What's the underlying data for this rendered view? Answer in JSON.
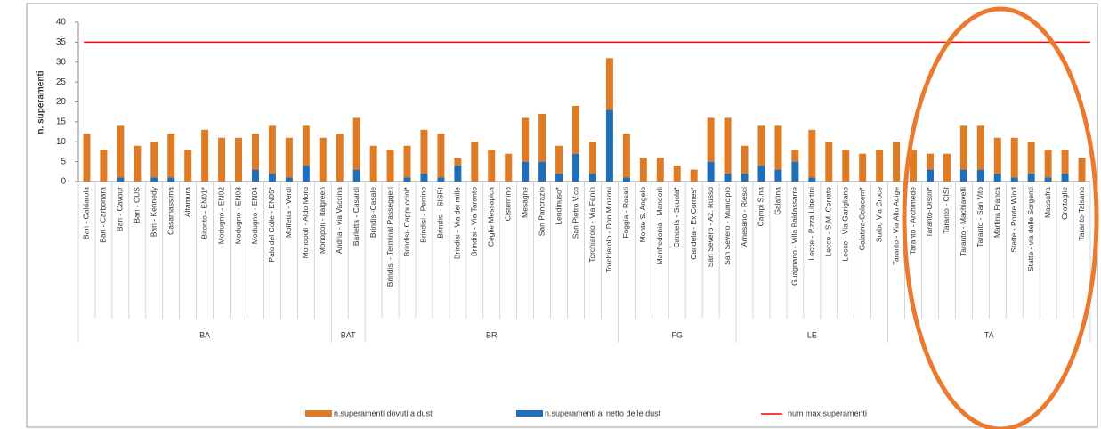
{
  "chart_data": {
    "type": "bar",
    "stacked": true,
    "y_label": "n. superamenti",
    "ylim": [
      0,
      40
    ],
    "yticks": [
      0,
      5,
      10,
      15,
      20,
      25,
      30,
      35,
      40
    ],
    "grid": false,
    "groups": [
      {
        "label": "BA",
        "categories": [
          "Bari - Caldarola",
          "Bari - Carbonara",
          "Bari - Cavour",
          "Bari - CUS",
          "Bari - Kennedy",
          "Casamassima",
          "Altamura",
          "Bitonto - EN01*",
          "Modugno - EN02",
          "Modugno - EN03",
          "Modugno - EN04",
          "Palo del Colle - EN05*",
          "Molfetta - Verdi",
          "Monopoli - Aldo Moro",
          "Monopoli - Italgreen"
        ]
      },
      {
        "label": "BAT",
        "categories": [
          "Andria - via Vaccina",
          "Barletta - Casardi"
        ]
      },
      {
        "label": "BR",
        "categories": [
          "Brindisi-Casale",
          "Brindisi - Terminal Passeggeri",
          "Brindisi- Cappuccini*",
          "Brindisi - Perrino",
          "Brindisi - SISRI",
          "Brindisi - Via dei mille",
          "Brindisi - Via Taranto",
          "Ceglie Messapica",
          "Cisternino",
          "Mesagne",
          "San Pancrazio",
          "Lendinuso*",
          "San Pietro V.co",
          "Torchiarolo - Via Fanin",
          "Torchiarolo - Don Minzoni"
        ]
      },
      {
        "label": "FG",
        "categories": [
          "Foggia - Rosati",
          "Monte S. Angelo",
          "Manfredonia - Mandorli",
          "Candela - Scuola*",
          "Candela - Ex Comes*",
          "San Severo - Az. Russo",
          "San Severo - Municipio"
        ]
      },
      {
        "label": "LE",
        "categories": [
          "Arnesano - Riesci",
          "Campi S.na",
          "Galatina",
          "Guagnano - Villa Baldassarre",
          "Lecce - P.zza Libertini",
          "Lecce - S.M. Cerrate",
          "Lecce - Via Garigliano",
          "Galatina-Colacem*",
          "Surbo Via Croce"
        ]
      },
      {
        "label": "TA",
        "categories": [
          "Taranto - Via Alto Adige",
          "Taranto - Archimede",
          "Taranto-Orsini*",
          "Taranto - CISI",
          "Taranto - Machiavelli",
          "Taranto - San Vito",
          "Martina Franca",
          "Statte - Ponte Wind",
          "Statte - via delle Sorgenti",
          "Massafra",
          "Grottaglie",
          "Taranto-Talsano"
        ]
      }
    ],
    "series": [
      {
        "name": "n.superamenti al netto delle dust",
        "color": "#1f6fb8",
        "values": [
          0,
          0,
          1,
          0,
          1,
          1,
          0,
          0,
          0,
          0,
          3,
          2,
          1,
          4,
          0,
          0,
          3,
          0,
          0,
          1,
          2,
          1,
          4,
          0,
          0,
          0,
          5,
          5,
          2,
          7,
          2,
          18,
          1,
          0,
          0,
          0,
          0,
          5,
          2,
          2,
          4,
          3,
          5,
          1,
          0,
          0,
          0,
          0,
          0,
          0,
          3,
          0,
          3,
          3,
          2,
          1,
          2,
          1,
          2,
          0
        ]
      },
      {
        "name": "n.superamenti dovuti a dust",
        "color": "#e07b25",
        "values": [
          12,
          8,
          13,
          9,
          9,
          11,
          8,
          13,
          11,
          11,
          9,
          12,
          10,
          10,
          11,
          12,
          13,
          9,
          8,
          8,
          11,
          11,
          2,
          10,
          8,
          7,
          11,
          12,
          7,
          12,
          8,
          13,
          11,
          6,
          6,
          4,
          3,
          11,
          14,
          7,
          10,
          11,
          3,
          12,
          10,
          8,
          7,
          8,
          10,
          8,
          4,
          7,
          11,
          11,
          9,
          10,
          8,
          7,
          6,
          6
        ]
      }
    ],
    "reference_line": {
      "name": "num max superamenti",
      "value": 35,
      "color": "#ff0000"
    },
    "legend_order": [
      1,
      0
    ]
  }
}
